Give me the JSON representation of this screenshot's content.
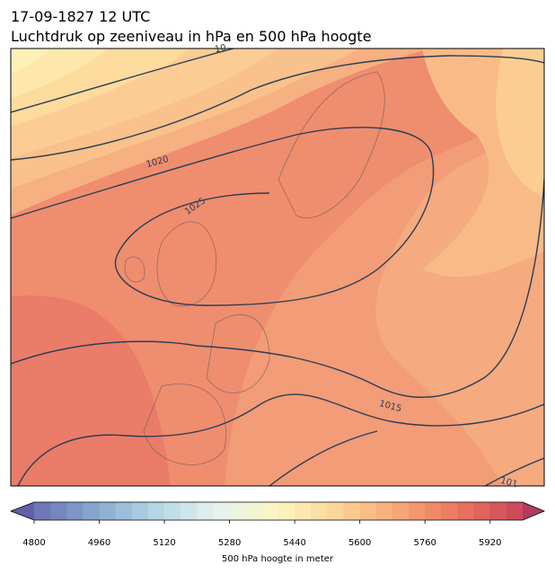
{
  "header": {
    "title": "17-09-1827 12 UTC",
    "subtitle": "Luchtdruk op zeeniveau in hPa en 500 hPa hoogte"
  },
  "map": {
    "contour_labels": [
      "10",
      "1020",
      "1025",
      "1015",
      "101"
    ]
  },
  "colorbar": {
    "label": "500 hPa hoogte in meter",
    "lim": [
      4800,
      6000
    ],
    "step": 40,
    "ticks": [
      4800,
      4960,
      5120,
      5280,
      5440,
      5600,
      5760,
      5920
    ],
    "colors": [
      "#6b6fb3",
      "#86a9cf",
      "#b4d7e6",
      "#e6f2ee",
      "#fcf6c0",
      "#fbd496",
      "#f5a473",
      "#e9735f",
      "#c9455a"
    ],
    "extend_colors": [
      "#5f60a8",
      "#b33b5b"
    ]
  }
}
